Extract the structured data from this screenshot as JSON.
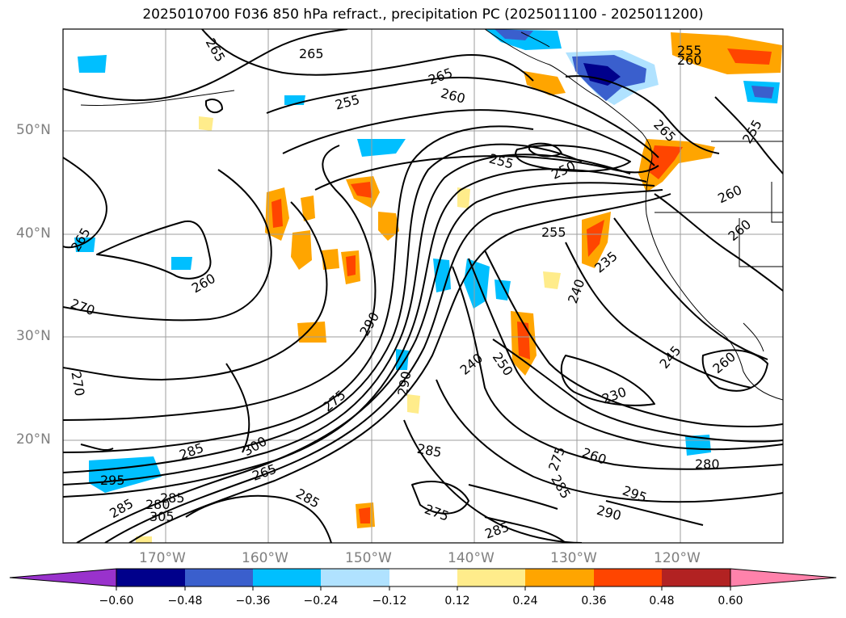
{
  "title": "2025010700 F036 850 hPa refract., precipitation PC (2025011100 - 2025011200)",
  "map": {
    "lat_labels": [
      "50°N",
      "40°N",
      "30°N",
      "20°N"
    ],
    "lon_labels": [
      "170°W",
      "160°W",
      "150°W",
      "140°W",
      "130°W",
      "120°W"
    ],
    "contour_labels": [
      "265",
      "265",
      "265",
      "260",
      "255",
      "255",
      "250",
      "255",
      "265",
      "255",
      "260",
      "260",
      "260",
      "265",
      "255",
      "260",
      "270",
      "270",
      "290",
      "240",
      "250",
      "240",
      "235",
      "230",
      "245",
      "260",
      "285",
      "300",
      "265",
      "285",
      "295",
      "285",
      "285",
      "290",
      "285",
      "275",
      "275",
      "285",
      "290",
      "295",
      "280",
      "260",
      "275",
      "285",
      "280",
      "305"
    ],
    "coastline_color": "#000000",
    "grid_color": "#9e9e9e"
  },
  "colorbar": {
    "tick_labels": [
      "−0.60",
      "−0.48",
      "−0.36",
      "−0.24",
      "−0.12",
      "0.12",
      "0.24",
      "0.36",
      "0.48",
      "0.60"
    ],
    "colors": [
      "#9932cc",
      "#00008b",
      "#3a5fcd",
      "#00bfff",
      "#b0e2ff",
      "#ffffff",
      "#ffec8b",
      "#ffa500",
      "#ff4500",
      "#b22222",
      "#ff82ab"
    ]
  }
}
